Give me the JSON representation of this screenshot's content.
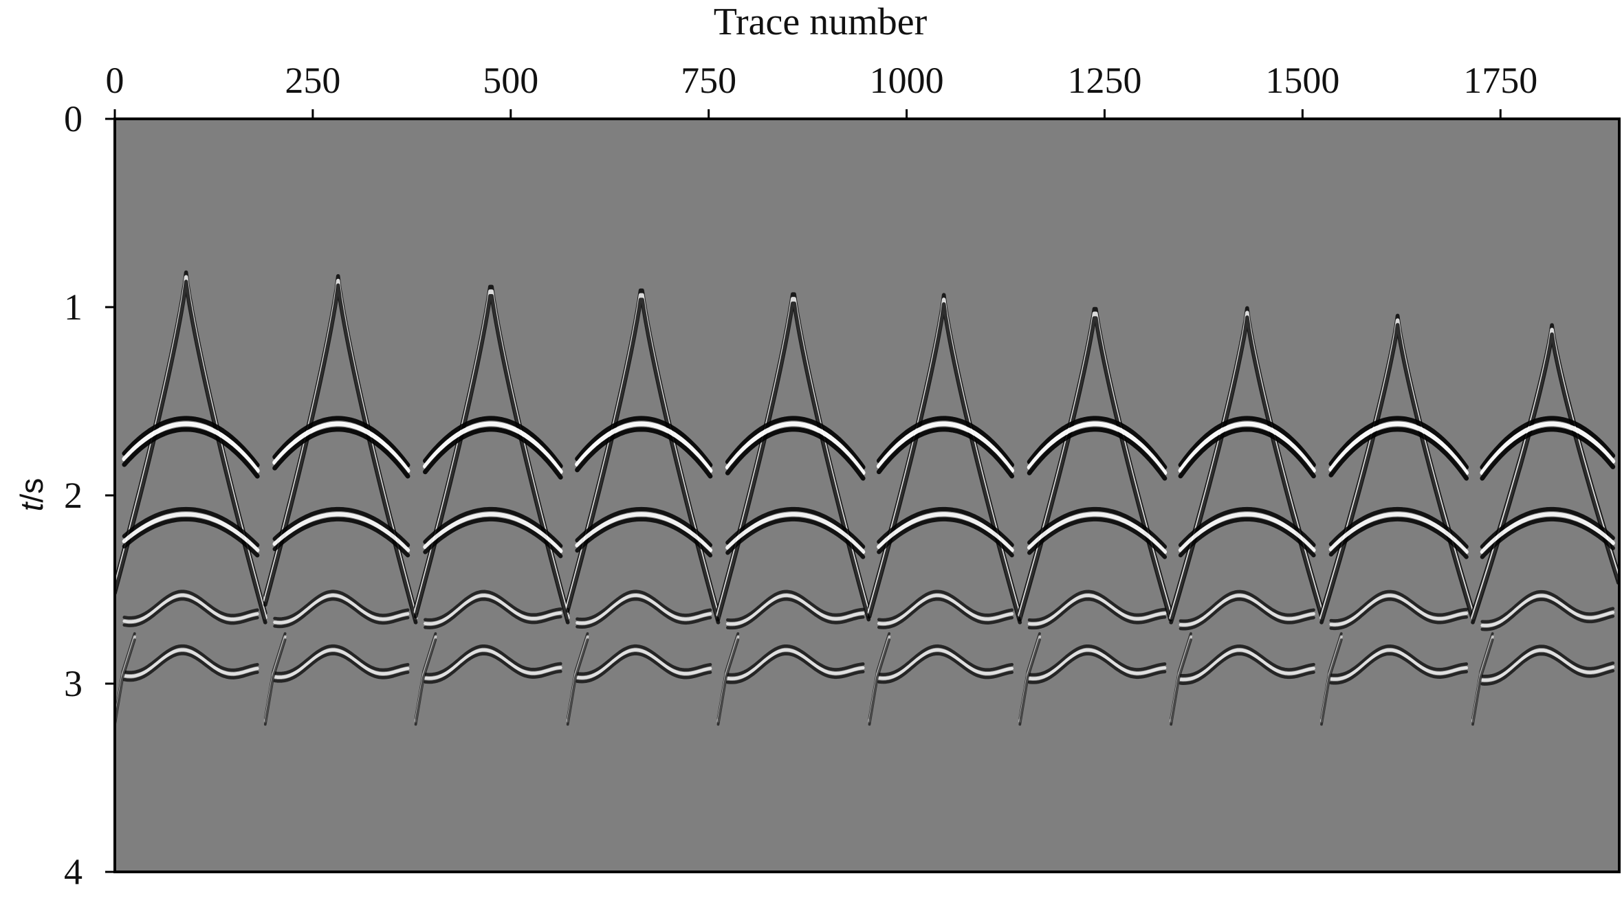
{
  "chart_data": {
    "type": "heatmap",
    "subtype": "seismic shot gathers (wiggle image, grayscale)",
    "title": "",
    "xlabel": "Trace number",
    "xlabel_position": "top",
    "ylabel_italic": "t",
    "ylabel_unit": "/s",
    "xlim": [
      0,
      1900
    ],
    "ylim": [
      0,
      4
    ],
    "y_inverted": true,
    "x_ticks": [
      0,
      250,
      500,
      750,
      1000,
      1250,
      1500,
      1750
    ],
    "x_tick_labels": [
      "0",
      "250",
      "500",
      "750",
      "1000",
      "1250",
      "1500",
      "1750"
    ],
    "y_ticks": [
      0,
      1,
      2,
      3,
      4
    ],
    "y_tick_labels": [
      "0",
      "1",
      "2",
      "3",
      "4"
    ],
    "grid": false,
    "background_color": "#7f7f7f",
    "event_color_dark": "#000000",
    "event_color_light": "#ffffff",
    "shots": [
      {
        "start": 0,
        "end": 190,
        "apex_trace": 90,
        "apex_time": 0.84
      },
      {
        "start": 190,
        "end": 380,
        "apex_trace": 282,
        "apex_time": 0.86
      },
      {
        "start": 380,
        "end": 572,
        "apex_trace": 475,
        "apex_time": 0.88
      },
      {
        "start": 572,
        "end": 762,
        "apex_trace": 665,
        "apex_time": 0.9
      },
      {
        "start": 762,
        "end": 953,
        "apex_trace": 857,
        "apex_time": 0.92
      },
      {
        "start": 953,
        "end": 1143,
        "apex_trace": 1047,
        "apex_time": 0.96
      },
      {
        "start": 1143,
        "end": 1334,
        "apex_trace": 1238,
        "apex_time": 1.0
      },
      {
        "start": 1334,
        "end": 1524,
        "apex_trace": 1430,
        "apex_time": 1.03
      },
      {
        "start": 1524,
        "end": 1715,
        "apex_trace": 1620,
        "apex_time": 1.07
      },
      {
        "start": 1715,
        "end": 1900,
        "apex_trace": 1815,
        "apex_time": 1.12
      }
    ],
    "reflections": [
      {
        "name": "",
        "apex_time": 1.62,
        "edge_time": 1.88
      },
      {
        "name": "",
        "apex_time": 2.1,
        "edge_time": 2.3
      },
      {
        "name": "",
        "apex_time": 2.58,
        "edge_time": 2.66
      },
      {
        "name": "",
        "apex_time": 2.87,
        "edge_time": 2.95
      }
    ]
  }
}
